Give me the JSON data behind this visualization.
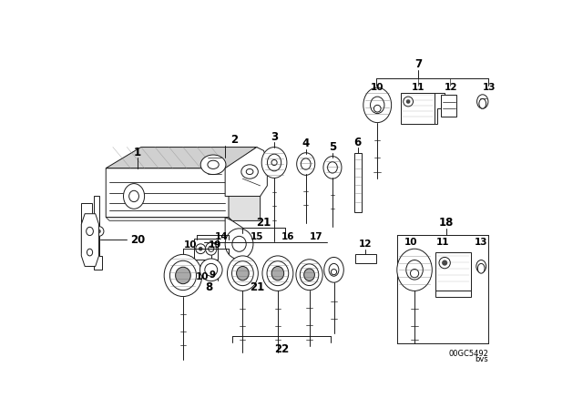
{
  "bg_color": "#ffffff",
  "line_color": "#000000",
  "part_number_text": "00GC5492",
  "part_number_sub": "bvs",
  "fig_width": 6.4,
  "fig_height": 4.48,
  "dpi": 100
}
